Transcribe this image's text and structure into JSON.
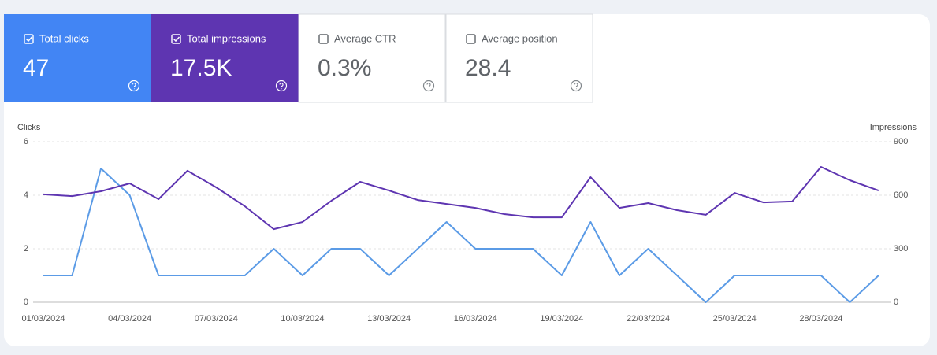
{
  "cards": [
    {
      "label": "Total clicks",
      "value": "47",
      "checked": true,
      "color": "#4285f4"
    },
    {
      "label": "Total impressions",
      "value": "17.5K",
      "checked": true,
      "color": "#5e35b1"
    },
    {
      "label": "Average CTR",
      "value": "0.3%",
      "checked": false
    },
    {
      "label": "Average position",
      "value": "28.4",
      "checked": false
    }
  ],
  "chart_data": {
    "type": "line",
    "y_label": "Clicks",
    "y2_label": "Impressions",
    "categories": [
      "01/03/2024",
      null,
      null,
      "04/03/2024",
      null,
      null,
      "07/03/2024",
      null,
      null,
      "10/03/2024",
      null,
      null,
      "13/03/2024",
      null,
      null,
      "16/03/2024",
      null,
      null,
      "19/03/2024",
      null,
      null,
      "22/03/2024",
      null,
      null,
      "25/03/2024",
      null,
      null,
      "28/03/2024",
      null,
      null
    ],
    "series": [
      {
        "name": "Clicks",
        "color": "#5b9be6",
        "values": [
          1,
          1,
          5,
          4,
          1,
          1,
          1,
          1,
          2,
          1,
          2,
          2,
          1,
          2,
          3,
          2,
          2,
          2,
          1,
          3,
          1,
          2,
          1,
          0,
          1,
          1,
          1,
          1,
          0,
          1
        ]
      },
      {
        "name": "Impressions",
        "color": "#5e35b1",
        "axis": "y2",
        "values": [
          605,
          595,
          622,
          666,
          578,
          737,
          644,
          538,
          410,
          450,
          569,
          675,
          626,
          573,
          551,
          529,
          494,
          476,
          476,
          701,
          529,
          556,
          516,
          490,
          613,
          560,
          565,
          759,
          684,
          626
        ]
      }
    ],
    "ylim": [
      0,
      6
    ],
    "yticks": [
      0,
      2,
      4,
      6
    ],
    "y2lim": [
      0,
      900
    ],
    "y2ticks": [
      0,
      300,
      600,
      900
    ],
    "grid": true
  }
}
